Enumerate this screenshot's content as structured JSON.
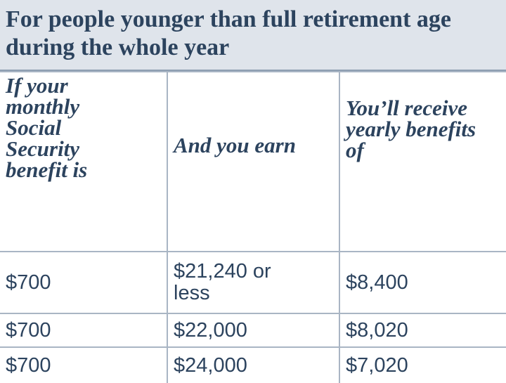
{
  "title": "For people younger than full retirement age during the whole year",
  "table": {
    "header": [
      "If your monthly Social Security benefit is",
      "And you earn",
      "You’ll receive yearly benefits of"
    ],
    "rows": [
      [
        "$700",
        "$21,240 or less",
        "$8,400"
      ],
      [
        "$700",
        "$22,000",
        "$8,020"
      ],
      [
        "$700",
        "$24,000",
        "$7,020"
      ]
    ]
  }
}
